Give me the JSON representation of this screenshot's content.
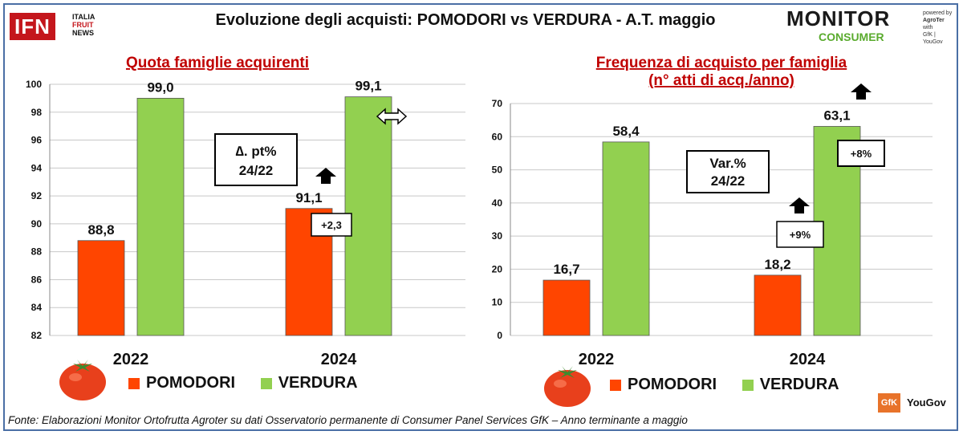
{
  "header": {
    "title": "Evoluzione degli acquisti: POMODORI vs VERDURA  - A.T. maggio",
    "ifn_logo": {
      "main": "IFN",
      "line1": "ITALIA",
      "line2": "FRUIT",
      "line3": "NEWS"
    },
    "monitor_logo": {
      "line1": "MONITOR",
      "line2": "CONSUMER",
      "powered": "powered by",
      "agroter": "AgroTer",
      "with": "with",
      "partners": "GfK | YouGov"
    }
  },
  "colors": {
    "pomodori": "#ff4500",
    "verdura": "#92d050",
    "title_red": "#c00000",
    "frame": "#4a6fa5"
  },
  "chart_data": [
    {
      "type": "bar",
      "title": "Quota famiglie acquirenti",
      "categories": [
        "2022",
        "2024"
      ],
      "series": [
        {
          "name": "POMODORI",
          "values": [
            88.8,
            91.1
          ],
          "labels": [
            "88,8",
            "91,1"
          ]
        },
        {
          "name": "VERDURA",
          "values": [
            99.0,
            99.1
          ],
          "labels": [
            "99,0",
            "99,1"
          ]
        }
      ],
      "ylim": [
        82,
        100
      ],
      "yticks": [
        "82",
        "84",
        "86",
        "88",
        "90",
        "92",
        "94",
        "96",
        "98",
        "100"
      ],
      "annotations": {
        "box_title": "∆. pt%",
        "box_sub": "24/22",
        "pom_change": "+2,3",
        "pom_arrow": "up",
        "ver_arrow": "steady"
      },
      "legend": "bottom"
    },
    {
      "type": "bar",
      "title": "Frequenza di acquisto per famiglia",
      "subtitle": "(n° atti di acq./anno)",
      "categories": [
        "2022",
        "2024"
      ],
      "series": [
        {
          "name": "POMODORI",
          "values": [
            16.7,
            18.2
          ],
          "labels": [
            "16,7",
            "18,2"
          ]
        },
        {
          "name": "VERDURA",
          "values": [
            58.4,
            63.1
          ],
          "labels": [
            "58,4",
            "63,1"
          ]
        }
      ],
      "ylim": [
        0,
        70
      ],
      "yticks": [
        "0",
        "10",
        "20",
        "30",
        "40",
        "50",
        "60",
        "70"
      ],
      "annotations": {
        "box_title": "Var.%",
        "box_sub": "24/22",
        "pom_change": "+9%",
        "ver_change": "+8%",
        "pom_arrow": "up",
        "ver_arrow": "up"
      },
      "legend": "bottom"
    }
  ],
  "legend": {
    "pomodori": "POMODORI",
    "verdura": "VERDURA"
  },
  "footer": {
    "source": "Fonte: Elaborazioni Monitor Ortofrutta Agroter su dati Osservatorio permanente di Consumer Panel Services GfK  – Anno terminante a maggio",
    "gfk": "GfK",
    "yougov": "YouGov"
  }
}
